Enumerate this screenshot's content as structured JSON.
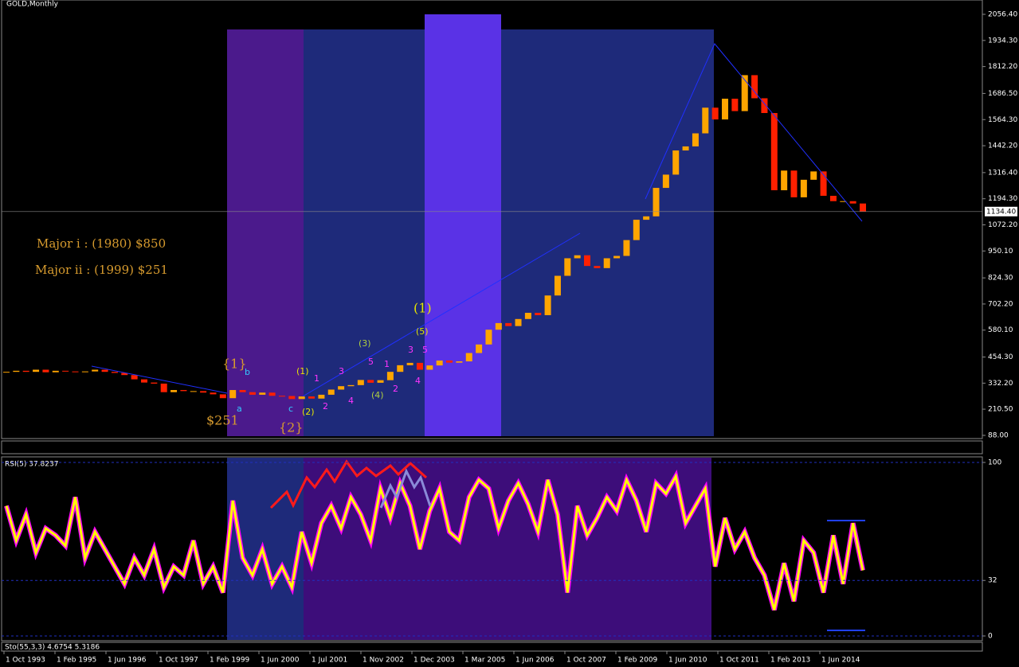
{
  "header": {
    "symbol": "GOLD,Monthly"
  },
  "annotations": [
    "{1}",
    "b",
    "(1)",
    "1",
    "3",
    "(3)",
    "5",
    "1",
    "(1)",
    "(5)",
    "3",
    "5",
    "a",
    "c",
    "(2)",
    "2",
    "4",
    "(4)",
    "2",
    "4",
    "$251",
    "{2}",
    "Major i : (1980) $850",
    "Major ii : (1999) $251"
  ],
  "time_axis": {
    "labels": [
      "1 Oct 1993",
      "1 Feb 1995",
      "1 Jun 1996",
      "1 Oct 1997",
      "1 Feb 1999",
      "1 Jun 2000",
      "1 Jul 2001",
      "1 Nov 2002",
      "1 Dec 2003",
      "1 Mar 2005",
      "1 Jun 2006",
      "1 Oct 2007",
      "1 Feb 2009",
      "1 Jun 2010",
      "1 Oct 2011",
      "1 Feb 2013",
      "1 Jun 2014"
    ]
  },
  "indicators": {
    "sto_label": "Sto(55,3,3) 4.6754 5.3186"
  },
  "chart_data": [
    {
      "type": "candlestick",
      "values": [
        385,
        390,
        385,
        395,
        383,
        390,
        387,
        384,
        387,
        395,
        385,
        380,
        370,
        350,
        335,
        330,
        290,
        300,
        295,
        295,
        288,
        280,
        262,
        300,
        290,
        278,
        288,
        273,
        272,
        258,
        270,
        260,
        278,
        302,
        318,
        323,
        347,
        334,
        346,
        385,
        416,
        427,
        395,
        415,
        438,
        428,
        434,
        473,
        513,
        582,
        613,
        599,
        632,
        661,
        650,
        742,
        834,
        916,
        930,
        880,
        870,
        916,
        927,
        1001,
        1096,
        1112,
        1245,
        1307,
        1420,
        1439,
        1500,
        1620,
        1565,
        1662,
        1604,
        1772,
        1664,
        1595,
        1234,
        1326,
        1201,
        1283,
        1322,
        1208,
        1183,
        1183,
        1172,
        1134
      ],
      "up_color": "#ffa500",
      "down_color": "#ff2000",
      "ylim": [
        73.1,
        2123.4
      ],
      "yticks": [
        {
          "value": 2056.4,
          "label": "2056.40"
        },
        {
          "value": 1934.3,
          "label": "1934.30"
        },
        {
          "value": 1812.2,
          "label": "1812.20"
        },
        {
          "value": 1686.5,
          "label": "1686.50"
        },
        {
          "value": 1564.3,
          "label": "1564.30"
        },
        {
          "value": 1442.2,
          "label": "1442.20"
        },
        {
          "value": 1316.4,
          "label": "1316.40"
        },
        {
          "value": 1194.3,
          "label": "1194.30"
        },
        {
          "value": 1072.2,
          "label": "1072.20"
        },
        {
          "value": 950.1,
          "label": "950.10"
        },
        {
          "value": 824.3,
          "label": "824.30"
        },
        {
          "value": 702.2,
          "label": "702.20"
        },
        {
          "value": 580.1,
          "label": "580.10"
        },
        {
          "value": 454.3,
          "label": "454.30"
        },
        {
          "value": 332.2,
          "label": "332.20"
        },
        {
          "value": 210.5,
          "label": "210.50"
        },
        {
          "value": 88,
          "label": "88.00"
        }
      ],
      "last_price": {
        "value": 1134.4,
        "label": "1134.40"
      }
    },
    {
      "type": "line",
      "title": "RSI(5) 37.8237",
      "values": [
        75,
        55,
        70,
        48,
        62,
        58,
        52,
        80,
        45,
        60,
        50,
        40,
        30,
        45,
        35,
        50,
        28,
        40,
        35,
        55,
        30,
        40,
        25,
        78,
        45,
        35,
        50,
        30,
        40,
        28,
        60,
        42,
        65,
        75,
        62,
        80,
        70,
        55,
        85,
        68,
        88,
        75,
        50,
        72,
        85,
        60,
        55,
        80,
        90,
        85,
        62,
        78,
        88,
        76,
        60,
        90,
        70,
        25,
        75,
        58,
        68,
        80,
        72,
        90,
        78,
        60,
        88,
        82,
        92,
        65,
        75,
        85,
        40,
        68,
        50,
        60,
        45,
        35,
        15,
        42,
        20,
        55,
        48,
        25,
        58,
        30,
        65,
        37.8237
      ],
      "color": "#ffff00",
      "shadow_color": "#ff00ff",
      "ylim": [
        -2.75,
        102.75
      ],
      "yticks": [
        100,
        32,
        0
      ]
    }
  ]
}
